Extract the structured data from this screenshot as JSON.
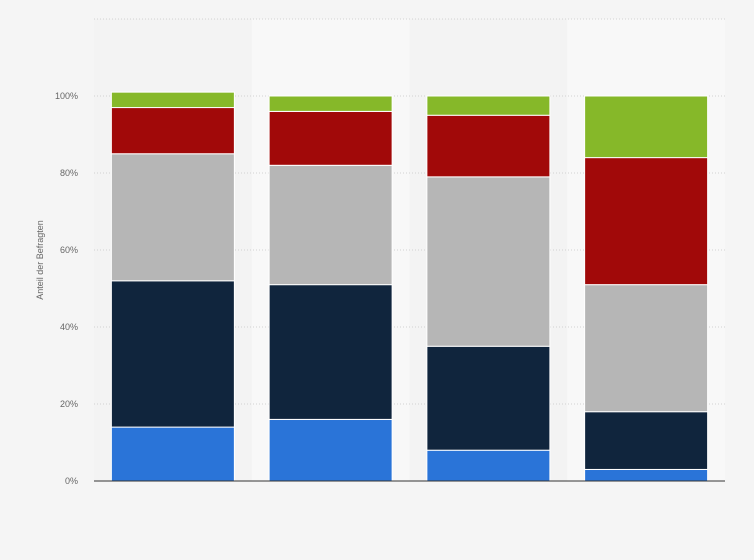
{
  "chart_data": {
    "type": "bar",
    "stacked": true,
    "ylabel": "Anteil der Befragten",
    "ylim": [
      0,
      120
    ],
    "yticks": [
      0,
      20,
      40,
      60,
      80,
      100
    ],
    "tick_format": "{v}%",
    "grid": true,
    "categories": [
      "",
      "",
      "",
      ""
    ],
    "series": [
      {
        "color": "#2a74d8",
        "values": [
          14,
          16,
          8,
          3
        ]
      },
      {
        "color": "#10253d",
        "values": [
          38,
          35,
          27,
          15
        ]
      },
      {
        "color": "#b6b6b6",
        "values": [
          33,
          31,
          44,
          33
        ]
      },
      {
        "color": "#a10909",
        "values": [
          12,
          14,
          16,
          33
        ]
      },
      {
        "color": "#86b829",
        "values": [
          4,
          4,
          5,
          16
        ]
      }
    ]
  }
}
